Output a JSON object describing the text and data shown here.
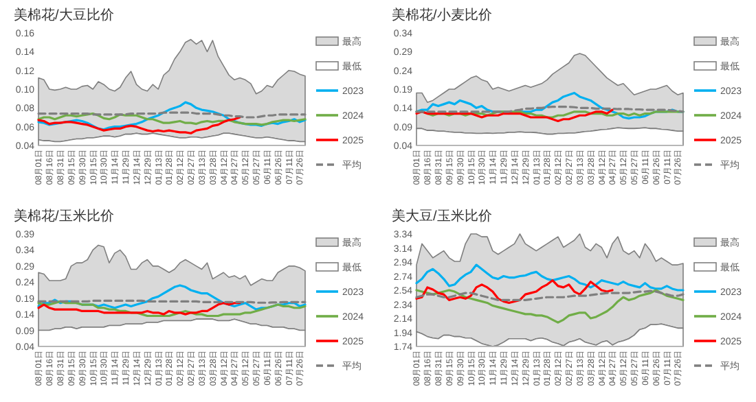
{
  "chart_data": [
    {
      "type": "line",
      "title": "美棉花/大豆比价",
      "legend": "right",
      "grid": false,
      "categories": [
        "08月01日",
        null,
        "08月16日",
        null,
        "08月31日",
        null,
        "09月15日",
        null,
        "09月30日",
        null,
        "10月15日",
        null,
        "10月30日",
        null,
        "11月14日",
        null,
        "11月29日",
        null,
        "12月14日",
        null,
        "12月29日",
        null,
        "01月13日",
        null,
        "01月28日",
        null,
        "02月12日",
        null,
        "02月27日",
        null,
        "03月13日",
        null,
        "03月28日",
        null,
        "04月12日",
        null,
        "04月27日",
        null,
        "05月12日",
        null,
        "05月27日",
        null,
        "06月11日",
        null,
        "06月26日",
        null,
        "07月11日",
        null,
        "07月26日",
        null
      ],
      "ylim": [
        0.04,
        0.16
      ],
      "yticks": [
        0.04,
        0.06,
        0.08,
        {
          "value": 0.1,
          "label": "0.10"
        },
        0.12,
        0.14,
        0.16
      ],
      "series": [
        {
          "name": "最高",
          "type": "area",
          "color": "#d9d9d9",
          "values": [
            0.112,
            0.11,
            0.1,
            0.099,
            0.1,
            0.102,
            0.1,
            0.1,
            0.103,
            0.104,
            0.1,
            0.108,
            0.105,
            0.1,
            0.098,
            0.102,
            0.112,
            0.119,
            0.105,
            0.1,
            0.098,
            0.105,
            0.1,
            0.115,
            0.12,
            0.132,
            0.14,
            0.15,
            0.153,
            0.148,
            0.152,
            0.14,
            0.152,
            0.135,
            0.125,
            0.115,
            0.11,
            0.112,
            0.11,
            0.106,
            0.095,
            0.098,
            0.104,
            0.102,
            0.11,
            0.115,
            0.12,
            0.119,
            0.116,
            0.114
          ]
        },
        {
          "name": "最低",
          "type": "area",
          "color": "#ffffff",
          "values": [
            0.046,
            0.045,
            0.045,
            0.044,
            0.044,
            0.045,
            0.046,
            0.047,
            0.047,
            0.048,
            0.048,
            0.049,
            0.05,
            0.05,
            0.049,
            0.05,
            0.052,
            0.052,
            0.053,
            0.052,
            0.052,
            0.053,
            0.052,
            0.051,
            0.05,
            0.049,
            0.048,
            0.048,
            0.049,
            0.049,
            0.048,
            0.049,
            0.05,
            0.051,
            0.053,
            0.053,
            0.052,
            0.051,
            0.05,
            0.049,
            0.048,
            0.048,
            0.049,
            0.048,
            0.047,
            0.046,
            0.045,
            0.045,
            0.044,
            0.044
          ]
        },
        {
          "name": "2023",
          "color": "#00b0f0",
          "values": [
            0.065,
            0.064,
            0.062,
            0.063,
            0.064,
            0.065,
            0.066,
            0.067,
            0.066,
            0.064,
            0.061,
            0.058,
            0.057,
            0.059,
            0.06,
            0.06,
            0.061,
            0.062,
            0.063,
            0.065,
            0.068,
            0.07,
            0.072,
            0.075,
            0.078,
            0.08,
            0.082,
            0.086,
            0.084,
            0.08,
            0.078,
            0.077,
            0.076,
            0.074,
            0.072,
            0.068,
            0.066,
            0.064,
            0.063,
            0.062,
            0.062,
            0.061,
            0.063,
            0.064,
            0.063,
            0.065,
            0.066,
            0.068,
            0.065,
            0.067
          ]
        },
        {
          "name": "2024",
          "color": "#70ad47",
          "values": [
            0.068,
            0.07,
            0.07,
            0.068,
            0.07,
            0.072,
            0.072,
            0.071,
            0.072,
            0.073,
            0.074,
            0.072,
            0.069,
            0.068,
            0.07,
            0.073,
            0.072,
            0.072,
            0.072,
            0.07,
            0.068,
            0.068,
            0.066,
            0.064,
            0.064,
            0.065,
            0.066,
            0.064,
            0.064,
            0.063,
            0.065,
            0.066,
            0.065,
            0.066,
            0.066,
            0.067,
            0.065,
            0.064,
            0.063,
            0.063,
            0.063,
            0.062,
            0.063,
            0.065,
            0.066,
            0.067,
            0.067,
            0.066,
            0.067,
            0.068
          ]
        },
        {
          "name": "2025",
          "color": "#ff0000",
          "values": [
            0.067,
            0.066,
            0.063,
            0.064,
            0.064,
            0.065,
            0.065,
            0.064,
            0.063,
            0.062,
            0.06,
            0.058,
            0.056,
            0.057,
            0.058,
            0.058,
            0.06,
            0.061,
            0.06,
            0.058,
            0.056,
            0.055,
            0.056,
            0.055,
            0.056,
            0.055,
            0.054,
            0.054,
            0.053,
            0.056,
            0.057,
            0.058,
            0.061,
            0.062,
            0.065,
            0.067,
            0.068,
            0.07,
            null,
            null,
            null,
            null,
            null,
            null,
            null,
            null,
            null,
            null,
            null,
            null
          ]
        },
        {
          "name": "平均",
          "color": "#7f7f7f",
          "line_style": "dashed",
          "values": [
            0.074,
            0.074,
            0.074,
            0.074,
            0.074,
            0.074,
            0.074,
            0.074,
            0.074,
            0.074,
            0.073,
            0.073,
            0.073,
            0.073,
            0.073,
            0.073,
            0.073,
            0.074,
            0.074,
            0.074,
            0.074,
            0.074,
            0.074,
            0.075,
            0.075,
            0.075,
            0.075,
            0.075,
            0.075,
            0.074,
            0.074,
            0.074,
            0.074,
            0.073,
            0.072,
            0.072,
            0.071,
            0.071,
            0.07,
            0.07,
            0.07,
            0.071,
            0.072,
            0.072,
            0.073,
            0.073,
            0.073,
            0.073,
            0.073,
            0.073
          ]
        }
      ]
    },
    {
      "type": "line",
      "title": "美棉花/小麦比价",
      "legend": "right",
      "grid": false,
      "categories": [
        "08月01日",
        null,
        "08月16日",
        null,
        "08月31日",
        null,
        "09月15日",
        null,
        "09月30日",
        null,
        "10月15日",
        null,
        "10月30日",
        null,
        "11月14日",
        null,
        "11月29日",
        null,
        "12月14日",
        null,
        "12月29日",
        null,
        "01月13日",
        null,
        "01月28日",
        null,
        "02月12日",
        null,
        "02月27日",
        null,
        "03月13日",
        null,
        "03月28日",
        null,
        "04月12日",
        null,
        "04月27日",
        null,
        "05月12日",
        null,
        "05月27日",
        null,
        "06月11日",
        null,
        "06月26日",
        null,
        "07月11日",
        null,
        "07月26日",
        null
      ],
      "ylim": [
        0.04,
        0.34
      ],
      "yticks": [
        0.04,
        0.09,
        0.14,
        0.19,
        0.24,
        0.29,
        0.34
      ],
      "series": [
        {
          "name": "最高",
          "type": "area",
          "color": "#d9d9d9",
          "values": [
            0.18,
            0.18,
            0.155,
            0.16,
            0.17,
            0.18,
            0.19,
            0.19,
            0.2,
            0.21,
            0.22,
            0.225,
            0.215,
            0.21,
            0.19,
            0.195,
            0.19,
            0.185,
            0.19,
            0.195,
            0.2,
            0.195,
            0.2,
            0.205,
            0.215,
            0.23,
            0.24,
            0.25,
            0.26,
            0.28,
            0.285,
            0.28,
            0.265,
            0.25,
            0.235,
            0.22,
            0.21,
            0.2,
            0.205,
            0.19,
            0.175,
            0.18,
            0.185,
            0.19,
            0.19,
            0.195,
            0.2,
            0.185,
            0.175,
            0.18
          ]
        },
        {
          "name": "最低",
          "type": "area",
          "color": "#ffffff",
          "values": [
            0.085,
            0.085,
            0.08,
            0.08,
            0.078,
            0.078,
            0.076,
            0.075,
            0.075,
            0.073,
            0.073,
            0.072,
            0.072,
            0.073,
            0.072,
            0.073,
            0.073,
            0.075,
            0.075,
            0.076,
            0.075,
            0.075,
            0.074,
            0.072,
            0.07,
            0.07,
            0.072,
            0.072,
            0.073,
            0.073,
            0.075,
            0.077,
            0.078,
            0.08,
            0.082,
            0.083,
            0.085,
            0.087,
            0.086,
            0.085,
            0.085,
            0.086,
            0.087,
            0.085,
            0.085,
            0.083,
            0.082,
            0.08,
            0.078,
            0.078
          ]
        },
        {
          "name": "2023",
          "color": "#00b0f0",
          "values": [
            0.13,
            0.135,
            0.135,
            0.15,
            0.145,
            0.15,
            0.155,
            0.15,
            0.16,
            0.155,
            0.15,
            0.14,
            0.145,
            0.135,
            0.13,
            0.13,
            0.13,
            0.125,
            0.13,
            0.13,
            0.13,
            0.13,
            0.135,
            0.135,
            0.145,
            0.155,
            0.16,
            0.17,
            0.175,
            0.18,
            0.17,
            0.165,
            0.16,
            0.15,
            0.14,
            0.135,
            0.13,
            0.125,
            0.115,
            0.112,
            0.115,
            0.115,
            0.118,
            0.125,
            0.13,
            0.13,
            0.13,
            0.135,
            0.13,
            0.13
          ]
        },
        {
          "name": "2024",
          "color": "#70ad47",
          "values": [
            0.13,
            0.13,
            0.125,
            0.12,
            0.125,
            0.125,
            0.12,
            0.125,
            0.125,
            0.12,
            0.125,
            0.125,
            0.125,
            0.12,
            0.125,
            0.13,
            0.13,
            0.13,
            0.13,
            0.13,
            0.125,
            0.125,
            0.12,
            0.12,
            0.115,
            0.115,
            0.12,
            0.12,
            0.125,
            0.13,
            0.13,
            0.13,
            0.125,
            0.125,
            0.125,
            0.12,
            0.12,
            0.125,
            0.125,
            0.12,
            0.125,
            0.12,
            0.125,
            0.125,
            0.13,
            0.13,
            0.13,
            0.13,
            0.13,
            0.13
          ]
        },
        {
          "name": "2025",
          "color": "#ff0000",
          "values": [
            0.125,
            0.13,
            0.125,
            0.125,
            0.125,
            0.125,
            0.125,
            0.125,
            0.125,
            0.125,
            0.125,
            0.12,
            0.115,
            0.12,
            0.12,
            0.12,
            0.125,
            0.125,
            0.125,
            0.125,
            0.12,
            0.115,
            0.115,
            0.115,
            0.115,
            0.11,
            0.105,
            0.11,
            0.11,
            0.115,
            0.12,
            0.12,
            0.125,
            0.13,
            0.13,
            0.125,
            0.135,
            null,
            null,
            null,
            null,
            null,
            null,
            null,
            null,
            null,
            null,
            null,
            null,
            null
          ]
        },
        {
          "name": "平均",
          "color": "#7f7f7f",
          "line_style": "dashed",
          "values": [
            0.13,
            0.13,
            0.13,
            0.13,
            0.13,
            0.13,
            0.13,
            0.13,
            0.13,
            0.13,
            0.13,
            0.13,
            0.13,
            0.13,
            0.13,
            0.13,
            0.13,
            0.13,
            0.133,
            0.135,
            0.138,
            0.138,
            0.14,
            0.14,
            0.142,
            0.143,
            0.143,
            0.143,
            0.143,
            0.142,
            0.14,
            0.14,
            0.14,
            0.138,
            0.138,
            0.138,
            0.138,
            0.137,
            0.137,
            0.137,
            0.136,
            0.136,
            0.135,
            0.135,
            0.135,
            0.135,
            0.135,
            0.133,
            0.132,
            0.13
          ]
        }
      ]
    },
    {
      "type": "line",
      "title": "美棉花/玉米比价",
      "legend": "right",
      "grid": false,
      "categories": [
        "08月01日",
        null,
        "08月16日",
        null,
        "08月31日",
        null,
        "09月15日",
        null,
        "09月30日",
        null,
        "10月15日",
        null,
        "10月30日",
        null,
        "11月14日",
        null,
        "11月29日",
        null,
        "12月14日",
        null,
        "12月29日",
        null,
        "01月13日",
        null,
        "01月28日",
        null,
        "02月12日",
        null,
        "02月27日",
        null,
        "03月13日",
        null,
        "03月28日",
        null,
        "04月12日",
        null,
        "04月27日",
        null,
        "05月12日",
        null,
        "05月27日",
        null,
        "06月11日",
        null,
        "06月26日",
        null,
        "07月11日",
        null,
        "07月26日",
        null
      ],
      "ylim": [
        0.04,
        0.39
      ],
      "yticks": [
        0.04,
        0.09,
        0.14,
        0.19,
        0.24,
        0.29,
        0.34,
        0.39
      ],
      "series": [
        {
          "name": "最高",
          "type": "area",
          "color": "#d9d9d9",
          "values": [
            0.27,
            0.265,
            0.245,
            0.245,
            0.245,
            0.25,
            0.29,
            0.3,
            0.3,
            0.31,
            0.34,
            0.355,
            0.35,
            0.3,
            0.33,
            0.34,
            0.32,
            0.28,
            0.28,
            0.3,
            0.31,
            0.29,
            0.29,
            0.28,
            0.27,
            0.28,
            0.3,
            0.31,
            0.3,
            0.29,
            0.28,
            0.3,
            0.25,
            0.26,
            0.27,
            0.255,
            0.26,
            0.25,
            0.26,
            0.23,
            0.24,
            0.25,
            0.245,
            0.245,
            0.27,
            0.28,
            0.29,
            0.29,
            0.285,
            0.275
          ]
        },
        {
          "name": "最低",
          "type": "area",
          "color": "#ffffff",
          "values": [
            0.09,
            0.09,
            0.09,
            0.095,
            0.095,
            0.1,
            0.1,
            0.095,
            0.1,
            0.1,
            0.1,
            0.1,
            0.1,
            0.105,
            0.105,
            0.105,
            0.11,
            0.11,
            0.11,
            0.11,
            0.115,
            0.115,
            0.115,
            0.12,
            0.12,
            0.12,
            0.12,
            0.12,
            0.12,
            0.125,
            0.125,
            0.125,
            0.125,
            0.12,
            0.12,
            0.12,
            0.125,
            0.12,
            0.115,
            0.11,
            0.11,
            0.105,
            0.105,
            0.1,
            0.1,
            0.1,
            0.095,
            0.095,
            0.09,
            0.09
          ]
        },
        {
          "name": "2023",
          "color": "#00b0f0",
          "values": [
            0.165,
            0.175,
            0.175,
            0.185,
            0.175,
            0.18,
            0.18,
            0.175,
            0.17,
            0.17,
            0.17,
            0.165,
            0.17,
            0.165,
            0.16,
            0.165,
            0.17,
            0.165,
            0.17,
            0.175,
            0.18,
            0.19,
            0.195,
            0.205,
            0.215,
            0.225,
            0.23,
            0.225,
            0.215,
            0.21,
            0.205,
            0.205,
            0.195,
            0.185,
            0.175,
            0.17,
            0.165,
            0.17,
            0.175,
            0.165,
            0.155,
            0.16,
            0.16,
            0.165,
            0.17,
            0.17,
            0.175,
            0.175,
            0.165,
            0.17
          ]
        },
        {
          "name": "2024",
          "color": "#70ad47",
          "values": [
            0.175,
            0.17,
            0.17,
            0.175,
            0.18,
            0.175,
            0.175,
            0.175,
            0.17,
            0.17,
            0.17,
            0.16,
            0.16,
            0.155,
            0.155,
            0.15,
            0.15,
            0.145,
            0.145,
            0.14,
            0.135,
            0.135,
            0.135,
            0.135,
            0.135,
            0.14,
            0.145,
            0.15,
            0.145,
            0.14,
            0.14,
            0.135,
            0.135,
            0.135,
            0.14,
            0.14,
            0.14,
            0.14,
            0.145,
            0.145,
            0.15,
            0.155,
            0.16,
            0.165,
            0.17,
            0.165,
            0.165,
            0.16,
            0.16,
            0.165
          ]
        },
        {
          "name": "2025",
          "color": "#ff0000",
          "values": [
            0.16,
            0.17,
            0.16,
            0.155,
            0.155,
            0.155,
            0.155,
            0.155,
            0.15,
            0.15,
            0.15,
            0.15,
            0.145,
            0.145,
            0.145,
            0.145,
            0.145,
            0.145,
            0.145,
            0.145,
            0.15,
            0.145,
            0.145,
            0.14,
            0.15,
            0.145,
            0.145,
            0.14,
            0.145,
            0.145,
            0.15,
            0.15,
            0.16,
            0.17,
            0.175,
            0.17,
            0.175,
            0.175,
            null,
            null,
            null,
            null,
            null,
            null,
            null,
            null,
            null,
            null,
            null,
            null
          ]
        },
        {
          "name": "平均",
          "color": "#7f7f7f",
          "line_style": "dashed",
          "values": [
            0.18,
            0.18,
            0.18,
            0.18,
            0.18,
            0.18,
            0.18,
            0.18,
            0.18,
            0.18,
            0.182,
            0.182,
            0.182,
            0.182,
            0.182,
            0.182,
            0.182,
            0.182,
            0.182,
            0.182,
            0.18,
            0.18,
            0.18,
            0.18,
            0.18,
            0.18,
            0.18,
            0.18,
            0.18,
            0.18,
            0.178,
            0.178,
            0.178,
            0.178,
            0.178,
            0.178,
            0.178,
            0.178,
            0.178,
            0.178,
            0.176,
            0.176,
            0.176,
            0.177,
            0.177,
            0.178,
            0.178,
            0.178,
            0.178,
            0.178
          ]
        }
      ]
    },
    {
      "type": "line",
      "title": "美大豆/玉米比价",
      "legend": "right",
      "grid": false,
      "categories": [
        "08月01日",
        null,
        "08月16日",
        null,
        "08月31日",
        null,
        "09月15日",
        null,
        "09月30日",
        null,
        "10月15日",
        null,
        "10月30日",
        null,
        "11月14日",
        null,
        "11月29日",
        null,
        "12月14日",
        null,
        "12月29日",
        null,
        "01月13日",
        null,
        "01月28日",
        null,
        "02月12日",
        null,
        "02月27日",
        null,
        "03月13日",
        null,
        "03月28日",
        null,
        "04月12日",
        null,
        "04月27日",
        null,
        "05月12日",
        null,
        "05月27日",
        null,
        "06月11日",
        null,
        "06月26日",
        null,
        "07月11日",
        null,
        "07月26日",
        null
      ],
      "ylim": [
        1.74,
        3.34
      ],
      "yticks": [
        1.74,
        1.94,
        2.14,
        2.34,
        2.54,
        2.74,
        2.94,
        3.14,
        3.34
      ],
      "series": [
        {
          "name": "最高",
          "type": "area",
          "color": "#d9d9d9",
          "values": [
            2.9,
            3.2,
            3.1,
            3.0,
            3.05,
            3.1,
            3.0,
            2.95,
            2.95,
            3.2,
            3.34,
            3.34,
            3.3,
            3.3,
            3.1,
            3.05,
            3.1,
            3.15,
            3.2,
            3.34,
            3.2,
            3.15,
            3.1,
            3.15,
            3.2,
            3.25,
            3.3,
            3.15,
            3.2,
            3.25,
            3.34,
            3.15,
            3.1,
            3.2,
            3.15,
            3.0,
            3.2,
            3.3,
            3.1,
            3.05,
            3.1,
            3.0,
            3.2,
            3.1,
            2.95,
            3.0,
            2.95,
            2.9,
            2.9,
            2.92
          ]
        },
        {
          "name": "最低",
          "type": "area",
          "color": "#ffffff",
          "values": [
            1.95,
            1.92,
            1.88,
            1.86,
            1.85,
            1.9,
            1.9,
            1.88,
            1.88,
            1.86,
            1.86,
            1.82,
            1.78,
            1.76,
            1.74,
            1.76,
            1.8,
            1.85,
            1.85,
            1.85,
            1.85,
            1.82,
            1.85,
            1.86,
            1.84,
            1.8,
            1.78,
            1.75,
            1.8,
            1.82,
            1.85,
            1.8,
            1.78,
            1.76,
            1.8,
            1.82,
            1.76,
            1.8,
            1.82,
            1.85,
            1.9,
            1.98,
            2.0,
            2.05,
            2.05,
            2.06,
            2.04,
            2.02,
            2.0,
            2.0
          ]
        },
        {
          "name": "2023",
          "color": "#00b0f0",
          "values": [
            2.64,
            2.7,
            2.8,
            2.84,
            2.78,
            2.7,
            2.6,
            2.62,
            2.7,
            2.76,
            2.8,
            2.9,
            2.84,
            2.78,
            2.72,
            2.7,
            2.74,
            2.72,
            2.72,
            2.74,
            2.75,
            2.78,
            2.8,
            2.74,
            2.7,
            2.68,
            2.7,
            2.72,
            2.74,
            2.7,
            2.64,
            2.62,
            2.58,
            2.62,
            2.68,
            2.66,
            2.64,
            2.62,
            2.66,
            2.62,
            2.6,
            2.58,
            2.64,
            2.58,
            2.56,
            2.56,
            2.6,
            2.56,
            2.54,
            2.54
          ]
        },
        {
          "name": "2024",
          "color": "#70ad47",
          "values": [
            2.54,
            2.52,
            2.5,
            2.48,
            2.5,
            2.52,
            2.54,
            2.52,
            2.48,
            2.44,
            2.42,
            2.4,
            2.38,
            2.36,
            2.32,
            2.3,
            2.28,
            2.26,
            2.24,
            2.22,
            2.2,
            2.2,
            2.18,
            2.18,
            2.16,
            2.12,
            2.08,
            2.12,
            2.18,
            2.2,
            2.22,
            2.22,
            2.14,
            2.16,
            2.2,
            2.24,
            2.3,
            2.38,
            2.44,
            2.4,
            2.42,
            2.46,
            2.48,
            2.5,
            2.54,
            2.5,
            2.46,
            2.44,
            2.42,
            2.4
          ]
        },
        {
          "name": "2025",
          "color": "#ff0000",
          "values": [
            2.42,
            2.44,
            2.58,
            2.55,
            2.5,
            2.48,
            2.4,
            2.42,
            2.44,
            2.42,
            2.46,
            2.58,
            2.62,
            2.58,
            2.52,
            2.42,
            2.38,
            2.36,
            2.38,
            2.4,
            2.48,
            2.5,
            2.52,
            2.58,
            2.62,
            2.68,
            2.6,
            2.58,
            2.62,
            2.52,
            2.48,
            2.56,
            2.66,
            2.6,
            2.54,
            2.52,
            2.54,
            null,
            null,
            null,
            null,
            null,
            null,
            null,
            null,
            null,
            null,
            null,
            null,
            null
          ]
        },
        {
          "name": "平均",
          "color": "#7f7f7f",
          "line_style": "dashed",
          "values": [
            2.44,
            2.46,
            2.48,
            2.48,
            2.46,
            2.44,
            2.44,
            2.46,
            2.48,
            2.5,
            2.5,
            2.48,
            2.46,
            2.44,
            2.42,
            2.4,
            2.4,
            2.4,
            2.4,
            2.4,
            2.4,
            2.41,
            2.42,
            2.43,
            2.44,
            2.44,
            2.44,
            2.44,
            2.45,
            2.46,
            2.46,
            2.46,
            2.47,
            2.48,
            2.49,
            2.5,
            2.5,
            2.5,
            2.5,
            2.5,
            2.51,
            2.52,
            2.52,
            2.53,
            2.52,
            2.5,
            2.48,
            2.46,
            2.46,
            2.48
          ]
        }
      ]
    }
  ]
}
